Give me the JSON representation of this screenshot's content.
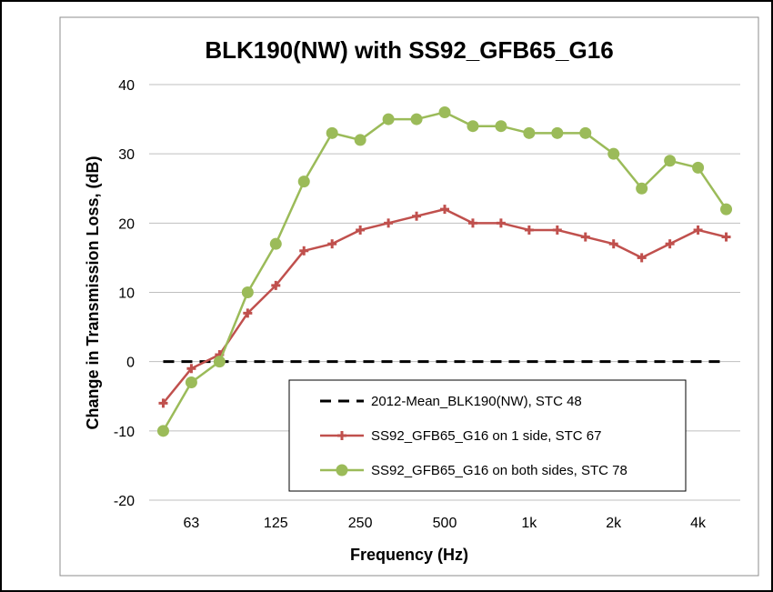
{
  "chart_data": {
    "type": "line",
    "title": "BLK190(NW) with SS92_GFB65_G16",
    "xlabel": "Frequency (Hz)",
    "ylabel": "Change in Transmission Loss, (dB)",
    "ylim": [
      -20,
      40
    ],
    "yticks": [
      "40",
      "30",
      "20",
      "10",
      "0",
      "-10",
      "-20"
    ],
    "x": [
      50,
      63,
      80,
      100,
      125,
      160,
      200,
      250,
      315,
      400,
      500,
      630,
      800,
      1000,
      1250,
      1600,
      2000,
      2500,
      3150,
      4000,
      5000
    ],
    "xtick_labels": [
      {
        "label": "63",
        "freq": 63
      },
      {
        "label": "125",
        "freq": 125
      },
      {
        "label": "250",
        "freq": 250
      },
      {
        "label": "500",
        "freq": 500
      },
      {
        "label": "1k",
        "freq": 1000
      },
      {
        "label": "2k",
        "freq": 2000
      },
      {
        "label": "4k",
        "freq": 4000
      }
    ],
    "grid": true,
    "legend_position": "bottom-right",
    "series": [
      {
        "name": "2012-Mean_BLK190(NW), STC 48",
        "color": "#000000",
        "style": "dashed",
        "marker": "none",
        "values": [
          0,
          0,
          0,
          0,
          0,
          0,
          0,
          0,
          0,
          0,
          0,
          0,
          0,
          0,
          0,
          0,
          0,
          0,
          0,
          0,
          0
        ]
      },
      {
        "name": "SS92_GFB65_G16 on 1 side, STC 67",
        "color": "#c0504d",
        "style": "solid",
        "marker": "plus",
        "values": [
          -6,
          -1,
          1,
          7,
          11,
          16,
          17,
          19,
          20,
          21,
          22,
          20,
          20,
          19,
          19,
          18,
          17,
          15,
          17,
          19,
          18
        ]
      },
      {
        "name": "SS92_GFB65_G16 on both sides, STC 78",
        "color": "#9bbb59",
        "style": "solid",
        "marker": "circle",
        "values": [
          -10,
          -3,
          0,
          10,
          17,
          26,
          33,
          32,
          35,
          35,
          36,
          34,
          34,
          33,
          33,
          33,
          30,
          25,
          29,
          28,
          22
        ]
      }
    ]
  }
}
